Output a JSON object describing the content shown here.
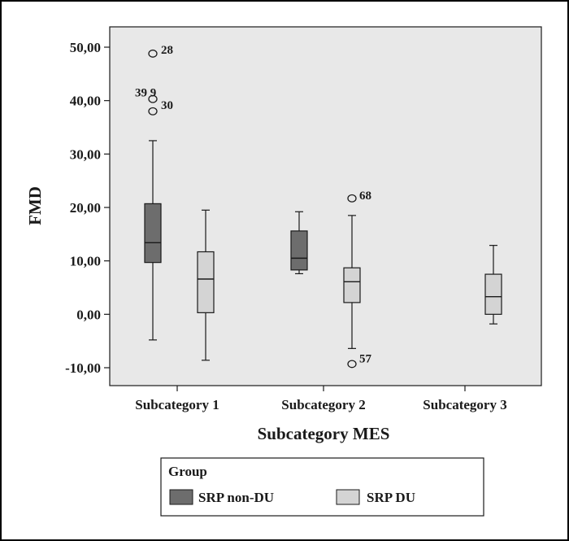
{
  "chart_data": {
    "type": "boxplot",
    "xlabel": "Subcategory MES",
    "ylabel": "FMD",
    "ylim": [
      -12,
      52
    ],
    "y_ticks": [
      -10,
      0,
      10,
      20,
      30,
      40,
      50
    ],
    "y_tick_labels": [
      "-10,00",
      "0,00",
      "10,00",
      "20,00",
      "30,00",
      "40,00",
      "50,00"
    ],
    "grid": false,
    "background_color": "#e8e8e8",
    "categories": [
      "Subcategory 1",
      "Subcategory 2",
      "Subcategory 3"
    ],
    "legend": {
      "title": "Group",
      "placement": "bottom",
      "entries": [
        "SRP non-DU",
        "SRP DU"
      ]
    },
    "series": [
      {
        "name": "SRP non-DU",
        "color": "#6d6d6d",
        "boxes": [
          {
            "category": "Subcategory 1",
            "whisker_low": -4.8,
            "q1": 9.7,
            "median": 13.4,
            "q3": 20.7,
            "whisker_high": 32.5,
            "outliers": [
              {
                "value": 48.8,
                "label": "28"
              },
              {
                "value": 40.3,
                "label": "39 9"
              },
              {
                "value": 38.0,
                "label": "30"
              }
            ]
          },
          {
            "category": "Subcategory 2",
            "whisker_low": 7.6,
            "q1": 8.3,
            "median": 10.5,
            "q3": 15.6,
            "whisker_high": 19.2,
            "outliers": []
          }
        ]
      },
      {
        "name": "SRP DU",
        "color": "#d4d4d4",
        "boxes": [
          {
            "category": "Subcategory 1",
            "whisker_low": -8.6,
            "q1": 0.3,
            "median": 6.6,
            "q3": 11.7,
            "whisker_high": 19.5,
            "outliers": []
          },
          {
            "category": "Subcategory 2",
            "whisker_low": -6.4,
            "q1": 2.2,
            "median": 6.1,
            "q3": 8.7,
            "whisker_high": 18.5,
            "outliers": [
              {
                "value": 21.7,
                "label": "68"
              },
              {
                "value": -9.3,
                "label": "57"
              }
            ]
          },
          {
            "category": "Subcategory 3",
            "whisker_low": -1.8,
            "q1": 0.0,
            "median": 3.3,
            "q3": 7.5,
            "whisker_high": 12.9,
            "outliers": []
          }
        ]
      }
    ]
  }
}
